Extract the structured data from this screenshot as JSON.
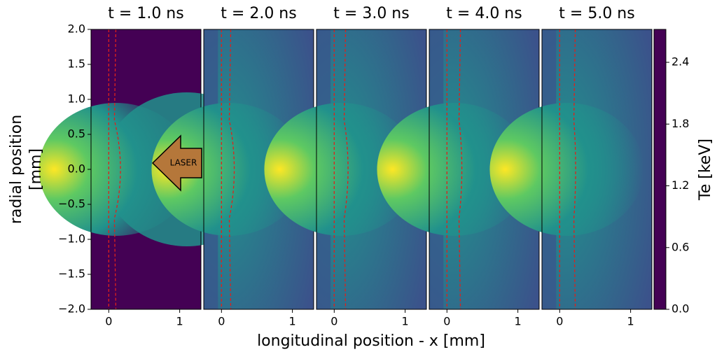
{
  "chart_data": {
    "type": "heatmap",
    "panels": [
      {
        "title": "t = 1.0 ns"
      },
      {
        "title": "t = 2.0 ns"
      },
      {
        "title": "t = 3.0 ns"
      },
      {
        "title": "t = 4.0 ns"
      },
      {
        "title": "t = 5.0 ns"
      }
    ],
    "xlabel": "longitudinal position - x [mm]",
    "ylabel": "radial position\n[mm]",
    "xlim": [
      -0.25,
      1.3
    ],
    "xticks": [
      0,
      1
    ],
    "ylim": [
      -2.0,
      2.0
    ],
    "yticks": [
      {
        "value": 2.0,
        "label": "2.0"
      },
      {
        "value": 1.5,
        "label": "1.5"
      },
      {
        "value": 1.0,
        "label": "1.0"
      },
      {
        "value": 0.5,
        "label": "0.5"
      },
      {
        "value": 0,
        "label": "0.0"
      },
      {
        "value": -0.5,
        "label": "−0.5"
      },
      {
        "value": -1.0,
        "label": "−1.0"
      },
      {
        "value": -1.5,
        "label": "−1.5"
      },
      {
        "value": -2.0,
        "label": "−2.0"
      }
    ],
    "colorbar": {
      "label": "Te [keV]",
      "lim": [
        0,
        2.72
      ],
      "ticks": [
        {
          "value": 0,
          "label": "0.0"
        },
        {
          "value": 0.6,
          "label": "0.6"
        },
        {
          "value": 1.2,
          "label": "1.2"
        },
        {
          "value": 1.8,
          "label": "1.8"
        },
        {
          "value": 2.4,
          "label": "2.4"
        }
      ]
    },
    "colormap": [
      "#440154",
      "#3b528b",
      "#21918c",
      "#5ec962",
      "#fde725"
    ],
    "annotation": "LASER"
  }
}
